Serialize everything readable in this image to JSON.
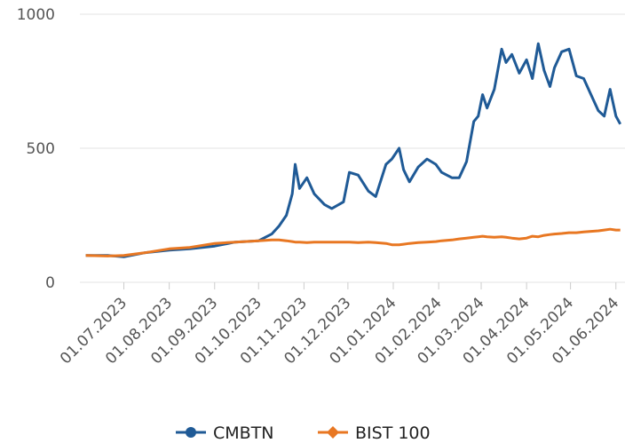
{
  "chart_data": {
    "type": "line",
    "x": [
      "2023-06-05",
      "2023-06-20",
      "2023-07-01",
      "2023-07-15",
      "2023-08-01",
      "2023-08-15",
      "2023-09-01",
      "2023-09-15",
      "2023-10-01",
      "2023-10-10",
      "2023-10-15",
      "2023-10-20",
      "2023-10-24",
      "2023-10-26",
      "2023-10-29",
      "2023-11-03",
      "2023-11-08",
      "2023-11-15",
      "2023-11-20",
      "2023-11-28",
      "2023-12-02",
      "2023-12-08",
      "2023-12-15",
      "2023-12-20",
      "2023-12-27",
      "2023-12-31",
      "2024-01-05",
      "2024-01-08",
      "2024-01-12",
      "2024-01-18",
      "2024-01-24",
      "2024-01-30",
      "2024-02-03",
      "2024-02-10",
      "2024-02-15",
      "2024-02-20",
      "2024-02-25",
      "2024-02-28",
      "2024-03-02",
      "2024-03-05",
      "2024-03-10",
      "2024-03-15",
      "2024-03-18",
      "2024-03-22",
      "2024-03-27",
      "2024-04-01",
      "2024-04-05",
      "2024-04-09",
      "2024-04-13",
      "2024-04-17",
      "2024-04-20",
      "2024-04-25",
      "2024-04-30",
      "2024-05-05",
      "2024-05-10",
      "2024-05-15",
      "2024-05-20",
      "2024-05-24",
      "2024-05-28",
      "2024-06-01",
      "2024-06-04"
    ],
    "series": [
      {
        "name": "CMBTN",
        "color": "#1f5a96",
        "values": [
          100,
          100,
          95,
          110,
          120,
          125,
          135,
          150,
          155,
          180,
          210,
          250,
          330,
          440,
          350,
          390,
          330,
          290,
          275,
          300,
          410,
          400,
          340,
          320,
          440,
          460,
          500,
          420,
          375,
          430,
          460,
          440,
          410,
          390,
          390,
          450,
          600,
          620,
          700,
          650,
          720,
          870,
          820,
          850,
          780,
          830,
          760,
          890,
          790,
          730,
          800,
          860,
          870,
          770,
          760,
          700,
          640,
          620,
          720,
          620,
          590
        ]
      },
      {
        "name": "BIST 100",
        "color": "#e87722",
        "values": [
          100,
          98,
          100,
          110,
          125,
          130,
          145,
          150,
          155,
          158,
          158,
          155,
          152,
          150,
          150,
          148,
          150,
          150,
          150,
          150,
          150,
          148,
          150,
          148,
          145,
          140,
          140,
          142,
          145,
          148,
          150,
          152,
          155,
          158,
          162,
          165,
          168,
          170,
          172,
          170,
          168,
          170,
          168,
          165,
          162,
          165,
          172,
          170,
          175,
          178,
          180,
          182,
          185,
          185,
          188,
          190,
          192,
          195,
          198,
          195,
          195
        ]
      }
    ],
    "xlim": [
      "2023-06-01",
      "2024-06-06"
    ],
    "xticks": [
      {
        "value": "2023-07-01",
        "label": "01.07.2023"
      },
      {
        "value": "2023-08-01",
        "label": "01.08.2023"
      },
      {
        "value": "2023-09-01",
        "label": "01.09.2023"
      },
      {
        "value": "2023-10-01",
        "label": "01.10.2023"
      },
      {
        "value": "2023-11-01",
        "label": "01.11.2023"
      },
      {
        "value": "2023-12-01",
        "label": "01.12.2023"
      },
      {
        "value": "2024-01-01",
        "label": "01.01.2024"
      },
      {
        "value": "2024-02-01",
        "label": "01.02.2024"
      },
      {
        "value": "2024-03-01",
        "label": "01.03.2024"
      },
      {
        "value": "2024-04-01",
        "label": "01.04.2024"
      },
      {
        "value": "2024-05-01",
        "label": "01.05.2024"
      },
      {
        "value": "2024-06-01",
        "label": "01.06.2024"
      }
    ],
    "ylim": [
      0,
      1000
    ],
    "yticks": [
      0,
      500,
      1000
    ],
    "grid": true
  }
}
